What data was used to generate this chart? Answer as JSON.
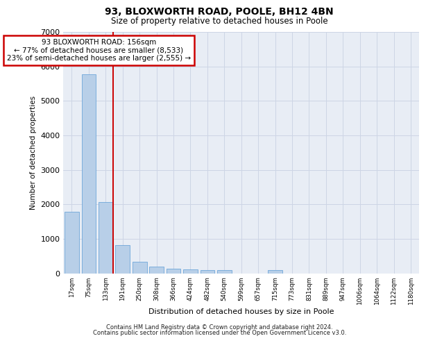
{
  "title1": "93, BLOXWORTH ROAD, POOLE, BH12 4BN",
  "title2": "Size of property relative to detached houses in Poole",
  "xlabel": "Distribution of detached houses by size in Poole",
  "ylabel": "Number of detached properties",
  "bar_labels": [
    "17sqm",
    "75sqm",
    "133sqm",
    "191sqm",
    "250sqm",
    "308sqm",
    "366sqm",
    "424sqm",
    "482sqm",
    "540sqm",
    "599sqm",
    "657sqm",
    "715sqm",
    "773sqm",
    "831sqm",
    "889sqm",
    "947sqm",
    "1006sqm",
    "1064sqm",
    "1122sqm",
    "1180sqm"
  ],
  "bar_values": [
    1780,
    5780,
    2060,
    820,
    340,
    195,
    130,
    115,
    100,
    90,
    0,
    0,
    95,
    0,
    0,
    0,
    0,
    0,
    0,
    0,
    0
  ],
  "bar_color": "#b8cfe8",
  "bar_edge_color": "#5b9bd5",
  "highlight_line_color": "#cc0000",
  "highlight_bar_index": 2,
  "annotation_text": "93 BLOXWORTH ROAD: 156sqm\n← 77% of detached houses are smaller (8,533)\n23% of semi-detached houses are larger (2,555) →",
  "annotation_box_facecolor": "#ffffff",
  "annotation_border_color": "#cc0000",
  "ylim": [
    0,
    7000
  ],
  "yticks": [
    0,
    1000,
    2000,
    3000,
    4000,
    5000,
    6000,
    7000
  ],
  "grid_color": "#cdd5e5",
  "bg_color": "#e8edf5",
  "footer1": "Contains HM Land Registry data © Crown copyright and database right 2024.",
  "footer2": "Contains public sector information licensed under the Open Government Licence v3.0."
}
